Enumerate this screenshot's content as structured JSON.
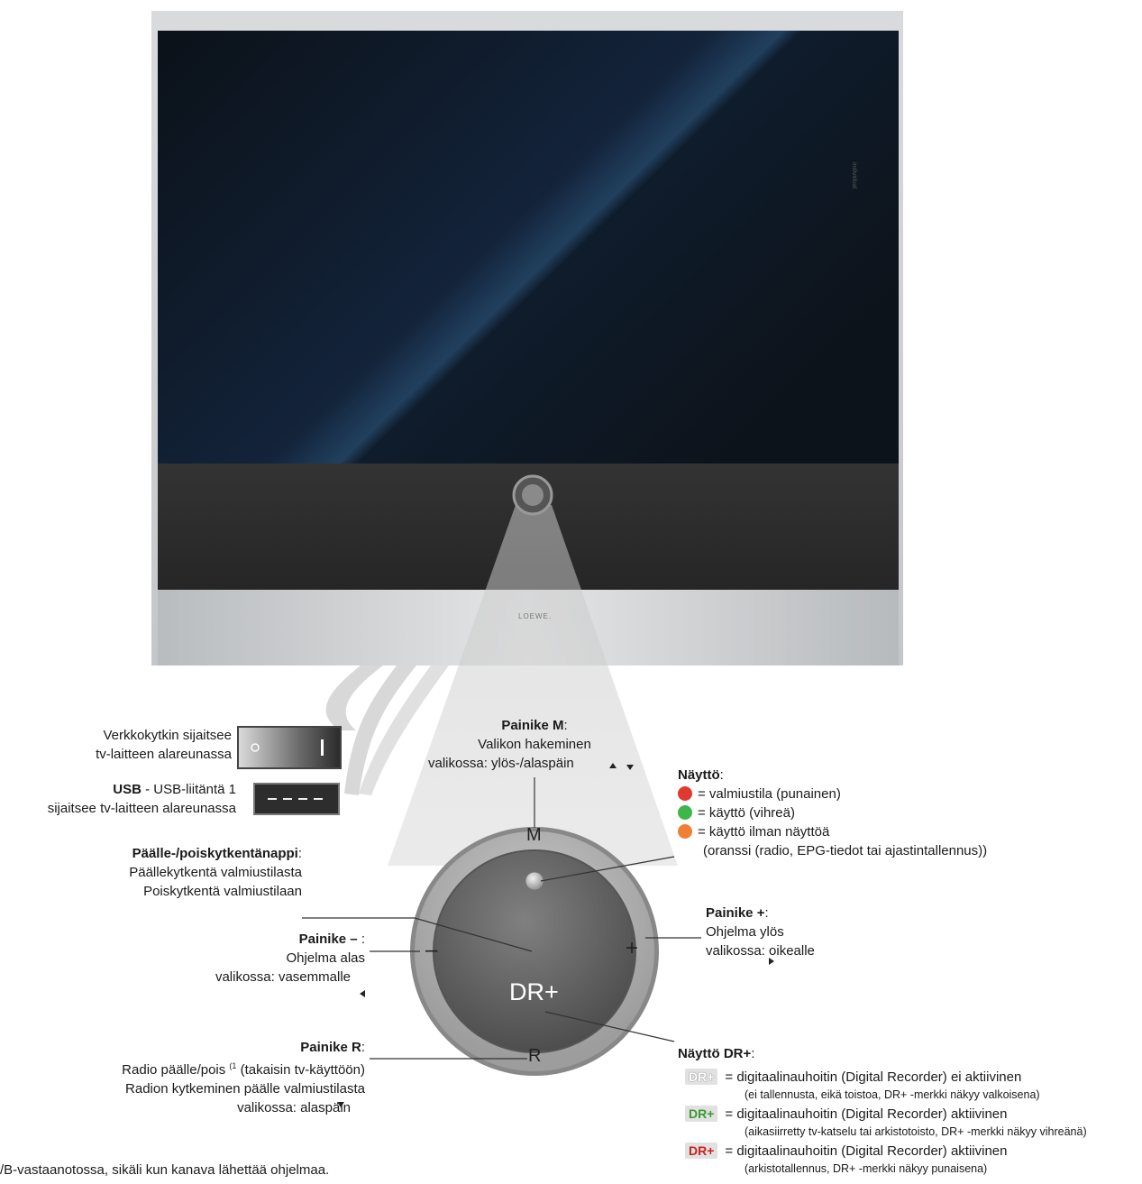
{
  "tv": {
    "brand": "LOEWE.",
    "side_text": "individual"
  },
  "callouts": {
    "mains_switch": {
      "line1": "Verkkokytkin sijaitsee",
      "line2": "tv-laitteen alareunassa"
    },
    "usb": {
      "bold": "USB",
      "rest": " - USB-liitäntä 1",
      "line2": "sijaitsee tv-laitteen alareunassa"
    },
    "button_m": {
      "title": "Painike M",
      "title_suffix": ":",
      "line1": "Valikon hakeminen",
      "line2": "valikossa: ylös-/alaspäin"
    },
    "power": {
      "title": "Päälle-/poiskytkentänappi",
      "title_suffix": ":",
      "line1": "Päällekytkentä valmiustilasta",
      "line2": "Poiskytkentä valmiustilaan"
    },
    "minus": {
      "title": "Painike –",
      "title_suffix": " :",
      "line1": "Ohjelma alas",
      "line2": "valikossa: vasemmalle"
    },
    "plus": {
      "title": "Painike +",
      "title_suffix": ":",
      "line1": "Ohjelma ylös",
      "line2": "valikossa: oikealle"
    },
    "button_r": {
      "title": "Painike R",
      "title_suffix": ":",
      "line1": "Radio päälle/pois",
      "line1_sup": "(1",
      "line1_rest": " (takaisin tv-käyttöön)",
      "line2": "Radion kytkeminen päälle valmiustilasta",
      "line3": "valikossa: alaspäin"
    },
    "display": {
      "title": "Näyttö",
      "title_suffix": ":",
      "items": [
        {
          "color": "#e03a2e",
          "text": "= valmiustila (punainen)"
        },
        {
          "color": "#3fb649",
          "text": "= käyttö (vihreä)"
        },
        {
          "color": "#f07f35",
          "text": "= käyttö ilman näyttöä"
        }
      ],
      "note": "(oranssi (radio, EPG-tiedot tai ajastintallennus))"
    },
    "display_dr": {
      "title": "Näyttö DR+",
      "title_suffix": ":",
      "items": [
        {
          "badge": "DR+",
          "badge_color": "#ffffff",
          "text": "= digitaalinauhoitin (Digital Recorder) ei aktiivinen",
          "sub": "(ei tallennusta, eikä toistoa, DR+ -merkki näkyy valkoisena)"
        },
        {
          "badge": "DR+",
          "badge_color": "#3a9a32",
          "text": "= digitaalinauhoitin (Digital Recorder) aktiivinen",
          "sub": "(aikasiirretty tv-katselu tai arkistotoisto, DR+ -merkki näkyy vihreänä)"
        },
        {
          "badge": "DR+",
          "badge_color": "#c8231e",
          "text": "= digitaalinauhoitin (Digital Recorder) aktiivinen",
          "sub": "(arkistotallennus, DR+ -merkki näkyy punaisena)"
        }
      ]
    }
  },
  "control": {
    "label_m": "M",
    "label_r": "R",
    "label_minus": "–",
    "label_plus": "+",
    "label_dr": "DR+"
  },
  "footnote": "/B-vastaanotossa, sikäli kun kanava lähettää ohjelmaa."
}
